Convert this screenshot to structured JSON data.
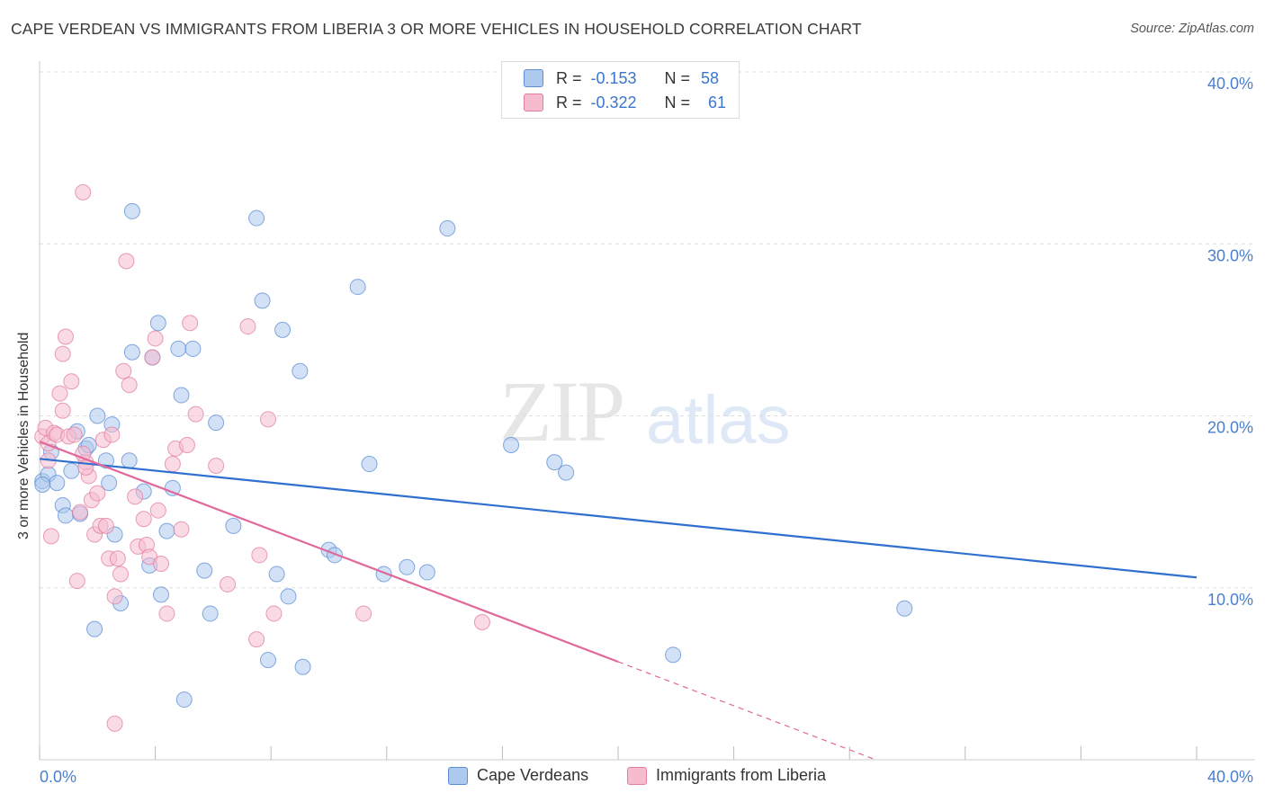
{
  "header": {
    "title": "CAPE VERDEAN VS IMMIGRANTS FROM LIBERIA 3 OR MORE VEHICLES IN HOUSEHOLD CORRELATION CHART",
    "source": "Source: ZipAtlas.com"
  },
  "legend": {
    "rows": [
      {
        "r_label": "R =",
        "r_value": "-0.153",
        "n_label": "N =",
        "n_value": "58"
      },
      {
        "r_label": "R =",
        "r_value": "-0.322",
        "n_label": "N =",
        "n_value": "61"
      }
    ]
  },
  "bottom_legend": {
    "series1": "Cape Verdeans",
    "series2": "Immigrants from Liberia"
  },
  "watermark": {
    "zip": "ZIP",
    "atlas": "atlas"
  },
  "colors": {
    "blue_fill": "#adc9ee",
    "blue_stroke": "#5b8ed6",
    "blue_line": "#2f6fd0",
    "pink_fill": "#f6bccd",
    "pink_stroke": "#e27ea0",
    "pink_line": "#e0689a",
    "grid": "#dddddd",
    "axis_text": "#4a7fcf"
  },
  "chart_data": {
    "type": "scatter",
    "title": "CAPE VERDEAN VS IMMIGRANTS FROM LIBERIA 3 OR MORE VEHICLES IN HOUSEHOLD CORRELATION CHART",
    "xlabel": "",
    "ylabel": "3 or more Vehicles in Household",
    "xlim": [
      0,
      40
    ],
    "ylim": [
      0,
      40
    ],
    "x_tick_labels": [
      "0.0%",
      "40.0%"
    ],
    "y_ticks": [
      10,
      20,
      30,
      40
    ],
    "y_tick_labels": [
      "10.0%",
      "20.0%",
      "30.0%",
      "40.0%"
    ],
    "grid": true,
    "legend_position": "top-center",
    "series": [
      {
        "name": "Cape Verdeans",
        "color": "#adc9ee",
        "r": -0.153,
        "n": 58,
        "trend": {
          "x": [
            0,
            40
          ],
          "y": [
            17.5,
            10.6
          ]
        },
        "points": [
          {
            "x": 0.1,
            "y": 16.2
          },
          {
            "x": 0.3,
            "y": 16.6
          },
          {
            "x": 0.4,
            "y": 17.9
          },
          {
            "x": 0.6,
            "y": 16.1
          },
          {
            "x": 0.8,
            "y": 14.8
          },
          {
            "x": 0.9,
            "y": 14.2
          },
          {
            "x": 1.1,
            "y": 16.8
          },
          {
            "x": 1.3,
            "y": 19.1
          },
          {
            "x": 1.4,
            "y": 14.3
          },
          {
            "x": 1.6,
            "y": 18.1
          },
          {
            "x": 1.7,
            "y": 18.3
          },
          {
            "x": 1.9,
            "y": 7.6
          },
          {
            "x": 2.0,
            "y": 20.0
          },
          {
            "x": 2.3,
            "y": 17.4
          },
          {
            "x": 2.4,
            "y": 16.1
          },
          {
            "x": 2.5,
            "y": 19.5
          },
          {
            "x": 2.6,
            "y": 13.1
          },
          {
            "x": 2.8,
            "y": 9.1
          },
          {
            "x": 3.1,
            "y": 17.4
          },
          {
            "x": 3.2,
            "y": 23.7
          },
          {
            "x": 3.2,
            "y": 31.9
          },
          {
            "x": 3.6,
            "y": 15.6
          },
          {
            "x": 3.8,
            "y": 11.3
          },
          {
            "x": 3.9,
            "y": 23.4
          },
          {
            "x": 4.1,
            "y": 25.4
          },
          {
            "x": 4.2,
            "y": 9.6
          },
          {
            "x": 4.4,
            "y": 13.3
          },
          {
            "x": 4.6,
            "y": 15.8
          },
          {
            "x": 4.8,
            "y": 23.9
          },
          {
            "x": 4.9,
            "y": 21.2
          },
          {
            "x": 5.0,
            "y": 3.5
          },
          {
            "x": 5.3,
            "y": 23.9
          },
          {
            "x": 5.7,
            "y": 11.0
          },
          {
            "x": 5.9,
            "y": 8.5
          },
          {
            "x": 6.1,
            "y": 19.6
          },
          {
            "x": 6.7,
            "y": 13.6
          },
          {
            "x": 7.5,
            "y": 31.5
          },
          {
            "x": 7.7,
            "y": 26.7
          },
          {
            "x": 7.9,
            "y": 5.8
          },
          {
            "x": 8.2,
            "y": 10.8
          },
          {
            "x": 8.4,
            "y": 25.0
          },
          {
            "x": 8.6,
            "y": 9.5
          },
          {
            "x": 9.0,
            "y": 22.6
          },
          {
            "x": 9.1,
            "y": 5.4
          },
          {
            "x": 10.0,
            "y": 12.2
          },
          {
            "x": 10.2,
            "y": 11.9
          },
          {
            "x": 11.0,
            "y": 27.5
          },
          {
            "x": 11.4,
            "y": 17.2
          },
          {
            "x": 11.9,
            "y": 10.8
          },
          {
            "x": 12.7,
            "y": 11.2
          },
          {
            "x": 13.4,
            "y": 10.9
          },
          {
            "x": 14.1,
            "y": 30.9
          },
          {
            "x": 16.3,
            "y": 18.3
          },
          {
            "x": 17.8,
            "y": 17.3
          },
          {
            "x": 18.2,
            "y": 16.7
          },
          {
            "x": 21.9,
            "y": 6.1
          },
          {
            "x": 29.9,
            "y": 8.8
          },
          {
            "x": 0.1,
            "y": 16.0
          }
        ]
      },
      {
        "name": "Immigrants from Liberia",
        "color": "#f6bccd",
        "r": -0.322,
        "n": 61,
        "trend": {
          "x": [
            0,
            20
          ],
          "y": [
            18.5,
            5.7
          ]
        },
        "points": [
          {
            "x": 0.1,
            "y": 18.8
          },
          {
            "x": 0.2,
            "y": 19.3
          },
          {
            "x": 0.3,
            "y": 18.4
          },
          {
            "x": 0.4,
            "y": 13.0
          },
          {
            "x": 0.5,
            "y": 19.0
          },
          {
            "x": 0.6,
            "y": 18.9
          },
          {
            "x": 0.7,
            "y": 21.3
          },
          {
            "x": 0.8,
            "y": 23.6
          },
          {
            "x": 0.8,
            "y": 20.3
          },
          {
            "x": 0.9,
            "y": 24.6
          },
          {
            "x": 1.0,
            "y": 18.8
          },
          {
            "x": 1.1,
            "y": 22.0
          },
          {
            "x": 1.2,
            "y": 18.9
          },
          {
            "x": 1.3,
            "y": 10.4
          },
          {
            "x": 1.4,
            "y": 14.4
          },
          {
            "x": 1.5,
            "y": 33.0
          },
          {
            "x": 1.6,
            "y": 17.3
          },
          {
            "x": 1.7,
            "y": 16.5
          },
          {
            "x": 1.8,
            "y": 15.1
          },
          {
            "x": 1.9,
            "y": 13.1
          },
          {
            "x": 2.0,
            "y": 15.5
          },
          {
            "x": 2.1,
            "y": 13.6
          },
          {
            "x": 2.2,
            "y": 18.6
          },
          {
            "x": 2.3,
            "y": 13.6
          },
          {
            "x": 2.4,
            "y": 11.7
          },
          {
            "x": 2.5,
            "y": 18.9
          },
          {
            "x": 2.6,
            "y": 9.5
          },
          {
            "x": 2.6,
            "y": 2.1
          },
          {
            "x": 2.7,
            "y": 11.7
          },
          {
            "x": 2.8,
            "y": 10.8
          },
          {
            "x": 2.9,
            "y": 22.6
          },
          {
            "x": 3.0,
            "y": 29.0
          },
          {
            "x": 3.1,
            "y": 21.8
          },
          {
            "x": 3.3,
            "y": 15.3
          },
          {
            "x": 3.4,
            "y": 12.4
          },
          {
            "x": 3.6,
            "y": 14.0
          },
          {
            "x": 3.7,
            "y": 12.5
          },
          {
            "x": 3.8,
            "y": 11.8
          },
          {
            "x": 3.9,
            "y": 23.4
          },
          {
            "x": 4.0,
            "y": 24.5
          },
          {
            "x": 4.1,
            "y": 14.5
          },
          {
            "x": 4.2,
            "y": 11.4
          },
          {
            "x": 4.4,
            "y": 8.5
          },
          {
            "x": 4.6,
            "y": 17.2
          },
          {
            "x": 4.7,
            "y": 18.1
          },
          {
            "x": 4.9,
            "y": 13.4
          },
          {
            "x": 5.1,
            "y": 18.3
          },
          {
            "x": 5.2,
            "y": 25.4
          },
          {
            "x": 5.4,
            "y": 20.1
          },
          {
            "x": 6.1,
            "y": 17.1
          },
          {
            "x": 6.5,
            "y": 10.2
          },
          {
            "x": 7.2,
            "y": 25.2
          },
          {
            "x": 7.5,
            "y": 7.0
          },
          {
            "x": 7.6,
            "y": 11.9
          },
          {
            "x": 7.9,
            "y": 19.8
          },
          {
            "x": 8.1,
            "y": 8.5
          },
          {
            "x": 11.2,
            "y": 8.5
          },
          {
            "x": 15.3,
            "y": 8.0
          },
          {
            "x": 1.5,
            "y": 17.8
          },
          {
            "x": 1.6,
            "y": 17.0
          },
          {
            "x": 0.3,
            "y": 17.4
          }
        ]
      }
    ]
  }
}
